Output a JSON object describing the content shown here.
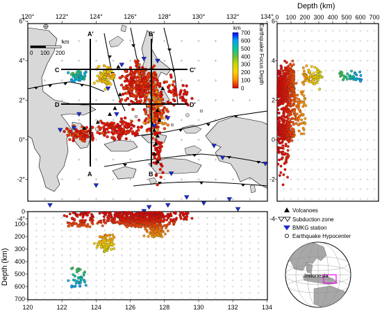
{
  "map": {
    "lon_ticks": [
      "120°",
      "122°",
      "124°",
      "126°",
      "128°",
      "130°",
      "132°",
      "134°"
    ],
    "lat_ticks": [
      "6°",
      "4°",
      "2°",
      "0°",
      "-2°",
      "-4°"
    ],
    "scale": {
      "unit": "km",
      "labels": [
        "0",
        "100",
        "200"
      ]
    },
    "profile_labels": {
      "A_top": "A'",
      "A_bot": "A",
      "B_top": "B'",
      "B_bot": "B",
      "C_left": "C",
      "C_right": "C'",
      "D_left": "D",
      "D_right": "D'"
    }
  },
  "colorbar": {
    "unit": "km",
    "title": "Earthquake Focus Depth",
    "ticks": [
      "700",
      "600",
      "500",
      "400",
      "300",
      "200",
      "100",
      "0"
    ],
    "colors": [
      "#0000ff",
      "#00a0ff",
      "#00c8a0",
      "#60c040",
      "#c8d800",
      "#ffd200",
      "#ff8c00",
      "#ff2000",
      "#e00000"
    ]
  },
  "right_panel": {
    "axis_title": "Depth (km)",
    "x_ticks": [
      "0",
      "100",
      "200",
      "300",
      "400",
      "500",
      "600",
      "700"
    ],
    "y_ticks": [
      "6",
      "4",
      "2",
      "0",
      "-2",
      "-4"
    ]
  },
  "bottom_panel": {
    "axis_title": "Depth (km)",
    "y_ticks": [
      "0",
      "100",
      "200",
      "300",
      "400",
      "500",
      "600",
      "700"
    ],
    "x_ticks": [
      "120",
      "122",
      "124",
      "126",
      "128",
      "130",
      "132",
      "134"
    ]
  },
  "legend": {
    "volcanoes": "Volcanoes",
    "subduction": "Subduction zone",
    "bmkg": "BMKG station",
    "hypocenter": "Earthquake Hypocenter"
  },
  "globe": {
    "label": "Indonesia"
  },
  "colors": {
    "land": "#d8d8d8",
    "station": "#1a2ccc",
    "line": "#000000"
  }
}
